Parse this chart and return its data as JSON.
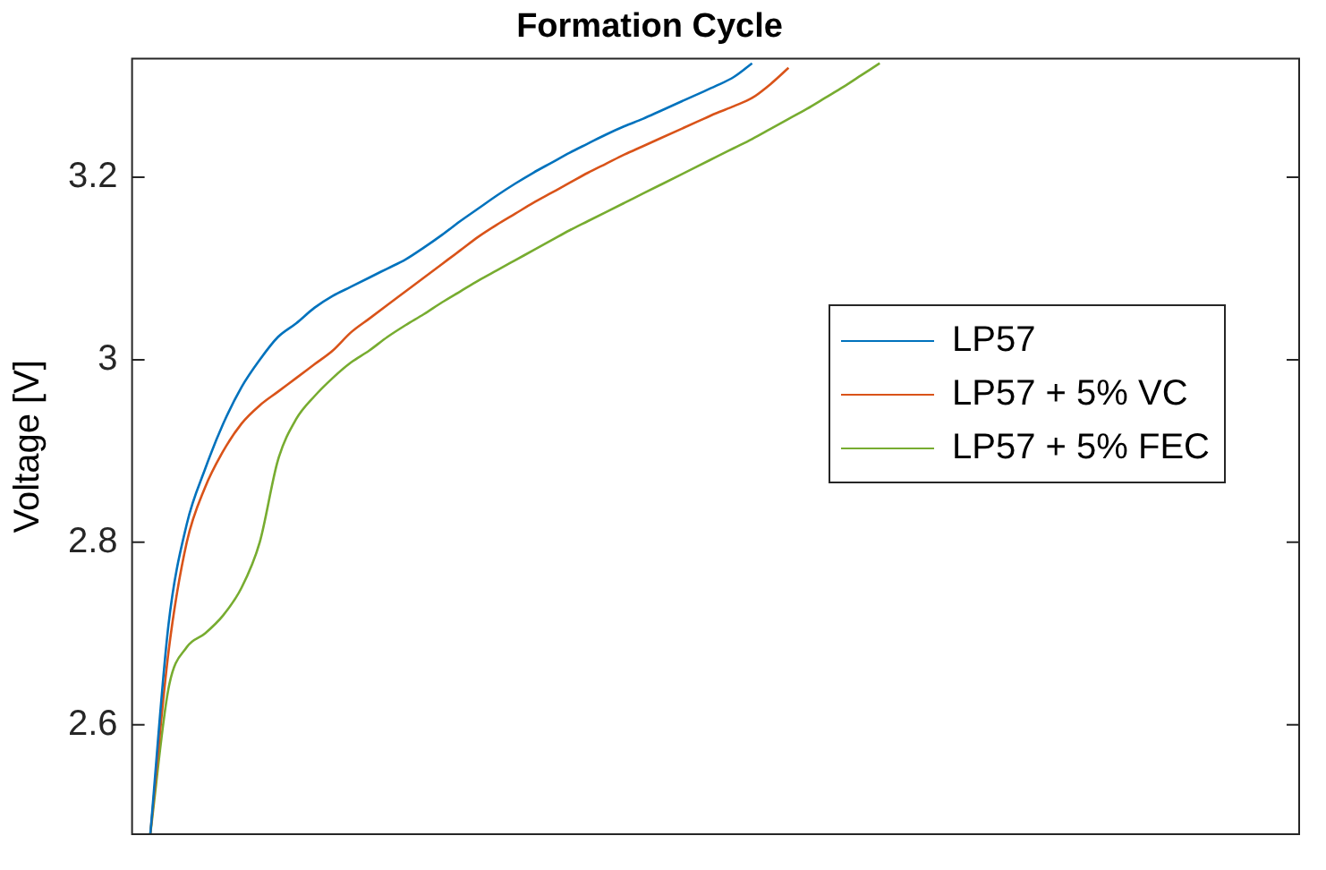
{
  "chart_data": {
    "type": "line",
    "title": "Formation Cycle",
    "ylabel": "Voltage [V]",
    "categories": [
      null,
      null,
      null,
      null,
      null,
      null,
      null,
      null,
      null,
      null,
      null,
      null,
      null,
      null,
      null,
      null,
      null,
      null,
      null,
      null,
      null,
      null,
      null,
      null,
      null,
      null,
      null,
      null,
      null,
      null,
      null,
      null,
      null,
      null,
      null,
      null,
      null,
      null,
      null,
      null,
      null,
      null,
      null,
      null,
      null,
      null,
      null,
      null,
      null,
      null,
      null,
      null,
      null,
      null,
      null,
      null,
      null,
      null,
      null,
      null,
      null,
      null,
      null,
      null,
      null
    ],
    "series": [
      {
        "name": "LP57",
        "color": "#0072bd",
        "values": [
          null,
          2.48,
          2.71,
          2.82,
          2.88,
          2.93,
          2.97,
          3.0,
          3.025,
          3.04,
          3.057,
          3.07,
          3.08,
          3.09,
          3.1,
          3.11,
          3.123,
          3.137,
          3.152,
          3.166,
          3.18,
          3.193,
          3.205,
          3.216,
          3.227,
          3.237,
          3.247,
          3.256,
          3.264,
          3.273,
          3.282,
          3.291,
          3.3,
          3.31,
          3.325,
          null,
          null,
          null,
          null,
          null,
          null,
          null,
          null,
          null,
          null,
          null,
          null,
          null,
          null,
          null,
          null,
          null,
          null,
          null,
          null,
          null,
          null,
          null,
          null,
          null,
          null,
          null,
          null,
          null,
          null
        ]
      },
      {
        "name": "LP57 + 5% VC",
        "color": "#d95319",
        "values": [
          null,
          2.48,
          2.68,
          2.8,
          2.86,
          2.9,
          2.93,
          2.95,
          2.965,
          2.98,
          2.995,
          3.01,
          3.03,
          3.045,
          3.06,
          3.075,
          3.09,
          3.105,
          3.12,
          3.135,
          3.148,
          3.16,
          3.172,
          3.183,
          3.194,
          3.205,
          3.215,
          3.225,
          3.234,
          3.243,
          3.252,
          3.261,
          3.27,
          3.278,
          3.287,
          3.302,
          3.32,
          null,
          null,
          null,
          null,
          null,
          null,
          null,
          null,
          null,
          null,
          null,
          null,
          null,
          null,
          null,
          null,
          null,
          null,
          null,
          null,
          null,
          null,
          null,
          null,
          null,
          null,
          null,
          null
        ]
      },
      {
        "name": "LP57 + 5% FEC",
        "color": "#77ac30",
        "values": [
          null,
          2.48,
          2.64,
          2.685,
          2.7,
          2.72,
          2.75,
          2.8,
          2.89,
          2.935,
          2.96,
          2.98,
          2.997,
          3.01,
          3.025,
          3.038,
          3.05,
          3.063,
          3.075,
          3.087,
          3.098,
          3.109,
          3.12,
          3.131,
          3.142,
          3.152,
          3.162,
          3.172,
          3.182,
          3.192,
          3.202,
          3.212,
          3.222,
          3.232,
          3.242,
          3.253,
          3.264,
          3.275,
          3.287,
          3.299,
          3.312,
          3.325,
          null,
          null,
          null,
          null,
          null,
          null,
          null,
          null,
          null,
          null,
          null,
          null,
          null,
          null,
          null,
          null,
          null,
          null,
          null,
          null,
          null,
          null,
          null
        ]
      }
    ],
    "ylim": [
      2.48,
      3.33
    ],
    "yticks": [
      2.6,
      2.8,
      3,
      3.2
    ],
    "grid": false,
    "legend": "right",
    "tick_labels": "y",
    "marker": "none",
    "line_style": "solid"
  }
}
